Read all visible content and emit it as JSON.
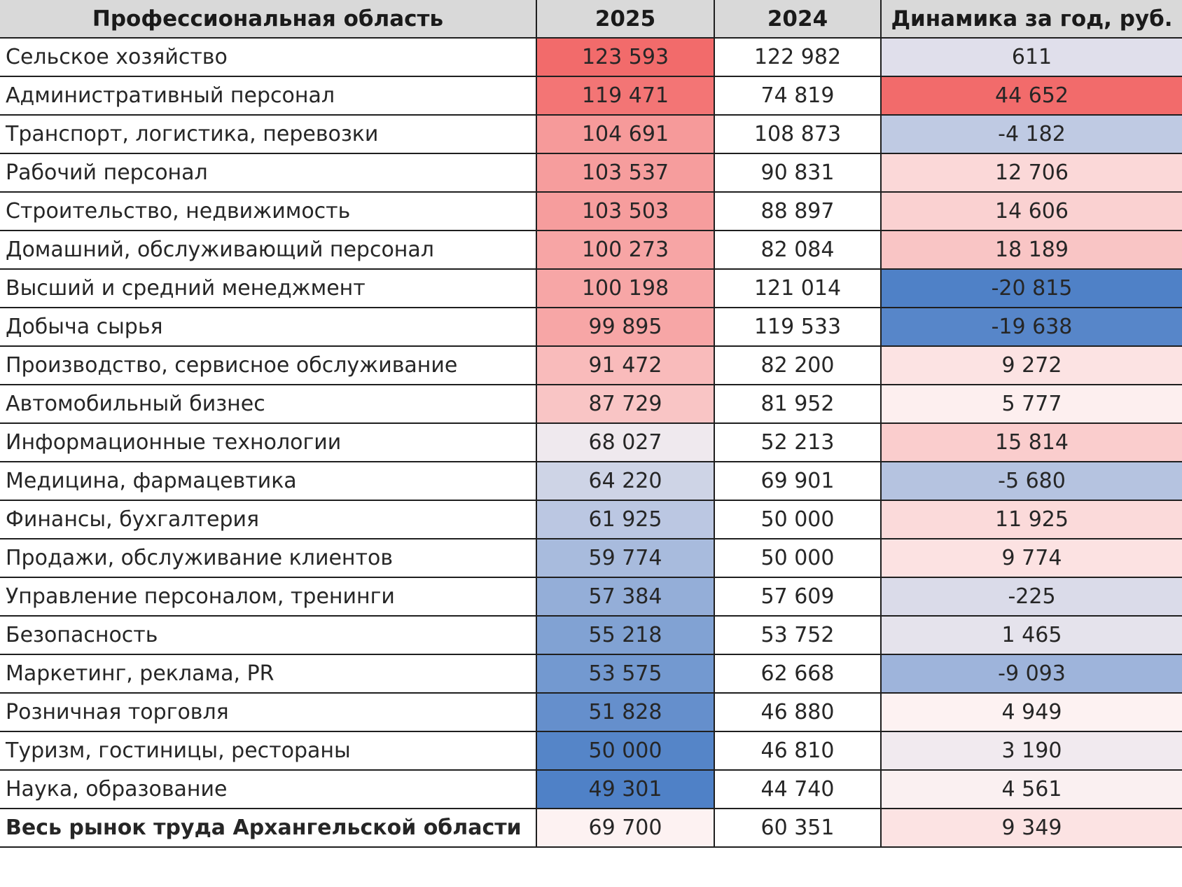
{
  "chart_data": {
    "type": "table",
    "title": "",
    "columns": [
      "Профессиональная область",
      "2025",
      "2024",
      "Динамика за год, руб."
    ],
    "rows": [
      {
        "area": "Сельское хозяйство",
        "v2025": "123 593",
        "v2024": "122 982",
        "delta": "611",
        "n2025": 123593,
        "ndelta": 611
      },
      {
        "area": "Административный персонал",
        "v2025": "119 471",
        "v2024": "74 819",
        "delta": "44 652",
        "n2025": 119471,
        "ndelta": 44652
      },
      {
        "area": "Транспорт, логистика, перевозки",
        "v2025": "104 691",
        "v2024": "108 873",
        "delta": "-4 182",
        "n2025": 104691,
        "ndelta": -4182
      },
      {
        "area": "Рабочий персонал",
        "v2025": "103 537",
        "v2024": "90 831",
        "delta": "12 706",
        "n2025": 103537,
        "ndelta": 12706
      },
      {
        "area": "Строительство, недвижимость",
        "v2025": "103 503",
        "v2024": "88 897",
        "delta": "14 606",
        "n2025": 103503,
        "ndelta": 14606
      },
      {
        "area": "Домашний, обслуживающий персонал",
        "v2025": "100 273",
        "v2024": "82 084",
        "delta": "18 189",
        "n2025": 100273,
        "ndelta": 18189
      },
      {
        "area": "Высший и средний менеджмент",
        "v2025": "100 198",
        "v2024": "121 014",
        "delta": "-20 815",
        "n2025": 100198,
        "ndelta": -20815
      },
      {
        "area": "Добыча сырья",
        "v2025": "99 895",
        "v2024": "119 533",
        "delta": "-19 638",
        "n2025": 99895,
        "ndelta": -19638
      },
      {
        "area": "Производство, сервисное обслуживание",
        "v2025": "91 472",
        "v2024": "82 200",
        "delta": "9 272",
        "n2025": 91472,
        "ndelta": 9272
      },
      {
        "area": "Автомобильный бизнес",
        "v2025": "87 729",
        "v2024": "81 952",
        "delta": "5 777",
        "n2025": 87729,
        "ndelta": 5777
      },
      {
        "area": "Информационные технологии",
        "v2025": "68 027",
        "v2024": "52 213",
        "delta": "15 814",
        "n2025": 68027,
        "ndelta": 15814
      },
      {
        "area": "Медицина, фармацевтика",
        "v2025": "64 220",
        "v2024": "69 901",
        "delta": "-5 680",
        "n2025": 64220,
        "ndelta": -5680
      },
      {
        "area": "Финансы, бухгалтерия",
        "v2025": "61 925",
        "v2024": "50 000",
        "delta": "11 925",
        "n2025": 61925,
        "ndelta": 11925
      },
      {
        "area": "Продажи, обслуживание клиентов",
        "v2025": "59 774",
        "v2024": "50 000",
        "delta": "9 774",
        "n2025": 59774,
        "ndelta": 9774
      },
      {
        "area": "Управление персоналом, тренинги",
        "v2025": "57 384",
        "v2024": "57 609",
        "delta": "-225",
        "n2025": 57384,
        "ndelta": -225
      },
      {
        "area": "Безопасность",
        "v2025": "55 218",
        "v2024": "53 752",
        "delta": "1 465",
        "n2025": 55218,
        "ndelta": 1465
      },
      {
        "area": "Маркетинг, реклама, PR",
        "v2025": "53 575",
        "v2024": "62 668",
        "delta": "-9 093",
        "n2025": 53575,
        "ndelta": -9093
      },
      {
        "area": "Розничная торговля",
        "v2025": "51 828",
        "v2024": "46 880",
        "delta": "4 949",
        "n2025": 51828,
        "ndelta": 4949
      },
      {
        "area": "Туризм, гостиницы, рестораны",
        "v2025": "50 000",
        "v2024": "46 810",
        "delta": "3 190",
        "n2025": 50000,
        "ndelta": 3190
      },
      {
        "area": "Наука, образование",
        "v2025": "49 301",
        "v2024": "44 740",
        "delta": "4 561",
        "n2025": 49301,
        "ndelta": 4561
      }
    ],
    "total": {
      "area": "Весь рынок труда Архангельской области",
      "v2025": "69 700",
      "v2024": "60 351",
      "delta": "9 349",
      "n2025": 69700,
      "ndelta": 9349
    },
    "colors": {
      "high": "#f26b6b",
      "mid": "#fdf2f2",
      "low": "#4f81c7",
      "header_bg": "#d9d9d9",
      "grid": "#1f1f1f",
      "text": "#262626"
    }
  }
}
